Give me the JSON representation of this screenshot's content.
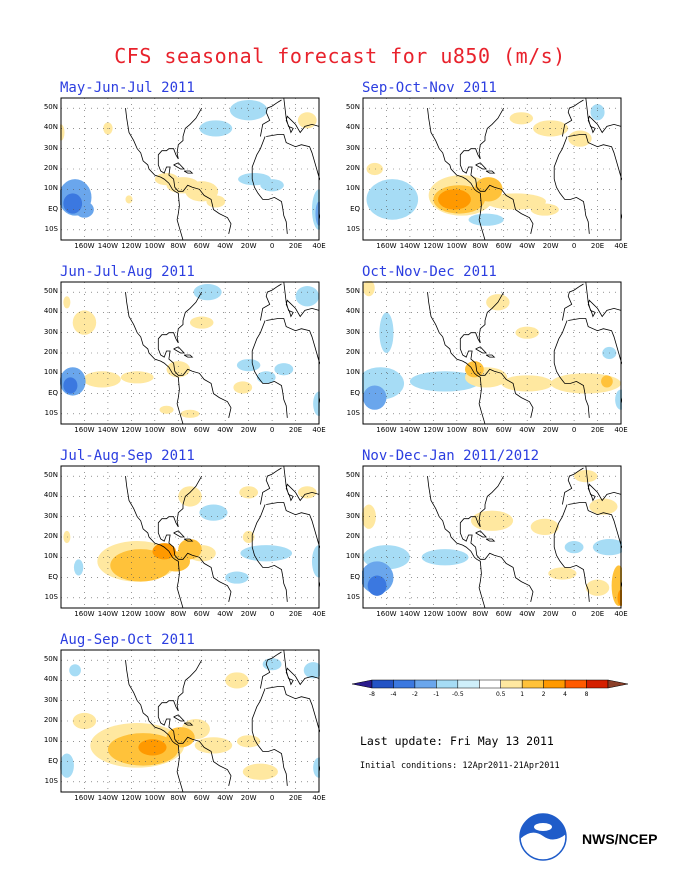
{
  "page": {
    "title": "CFS seasonal forecast for u850 (m/s)"
  },
  "panels": [
    {
      "title": "May-Jun-Jul 2011"
    },
    {
      "title": "Sep-Oct-Nov 2011"
    },
    {
      "title": "Jun-Jul-Aug 2011"
    },
    {
      "title": "Oct-Nov-Dec 2011"
    },
    {
      "title": "Jul-Aug-Sep 2011"
    },
    {
      "title": "Nov-Dec-Jan 2011/2012"
    },
    {
      "title": "Aug-Sep-Oct 2011"
    }
  ],
  "axes": {
    "y_ticks": [
      "50N",
      "40N",
      "30N",
      "20N",
      "10N",
      "EQ",
      "10S"
    ],
    "x_ticks": [
      "160W",
      "140W",
      "120W",
      "100W",
      "80W",
      "60W",
      "40W",
      "20W",
      "0",
      "20E",
      "40E"
    ]
  },
  "colorbar": {
    "labels": [
      "-8",
      "-4",
      "-2",
      "-1",
      "-0.5",
      "0.5",
      "1",
      "2",
      "4",
      "8"
    ],
    "colors": [
      "#2a1a8c",
      "#2353c5",
      "#3b78e0",
      "#6aa6ec",
      "#a6dcf5",
      "#cfeffa",
      "#ffffff",
      "#ffe8a0",
      "#ffc23a",
      "#ff9900",
      "#ff5a00",
      "#d42000",
      "#8b3f28"
    ]
  },
  "update": {
    "last_update": "Last update: Fri May 13 2011",
    "initial_conditions": "Initial conditions: 12Apr2011-21Apr2011"
  },
  "agency": {
    "name": "NWS/NCEP"
  },
  "chart_data": {
    "type": "heatmap",
    "title": "CFS seasonal forecast for u850 (m/s)",
    "variable": "u850 anomaly",
    "units": "m/s",
    "panels": [
      "May-Jun-Jul 2011",
      "Sep-Oct-Nov 2011",
      "Jun-Jul-Aug 2011",
      "Oct-Nov-Dec 2011",
      "Jul-Aug-Sep 2011",
      "Nov-Dec-Jan 2011/2012",
      "Aug-Sep-Oct 2011"
    ],
    "lon_range": [
      "180W",
      "40E"
    ],
    "lat_range": [
      "15S",
      "55N"
    ],
    "contour_levels": [
      -8,
      -4,
      -2,
      -1,
      -0.5,
      0.5,
      1,
      2,
      4,
      8
    ],
    "grid": true
  }
}
